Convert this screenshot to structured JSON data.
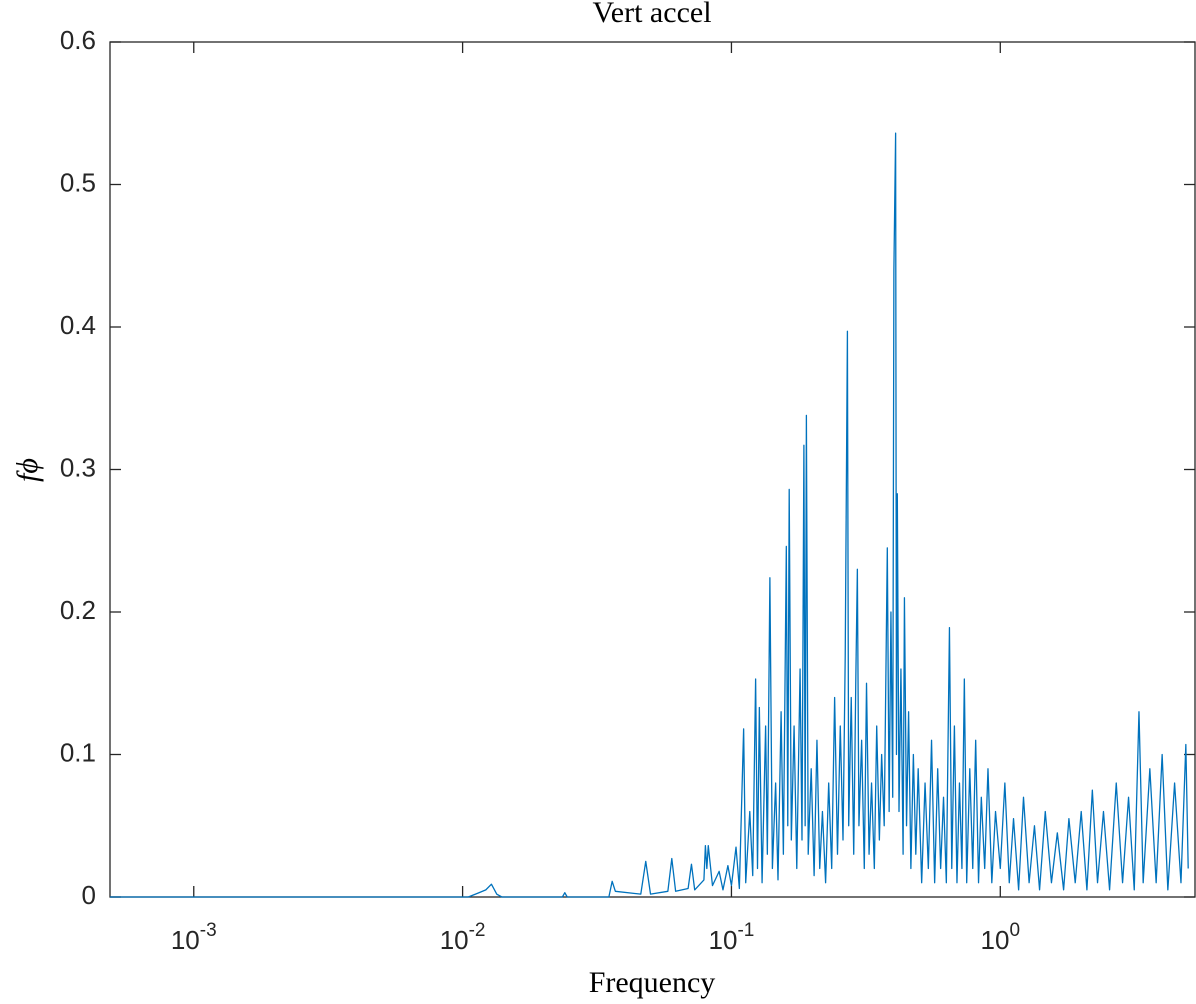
{
  "chart_data": {
    "type": "line",
    "title": "Vert accel",
    "xlabel": "Frequency",
    "ylabel": "fϕ",
    "log_x": true,
    "color": "#0072bd",
    "xlim": [
      0.000488,
      5.3
    ],
    "ylim": [
      0,
      0.6
    ],
    "xticks": [
      {
        "value": 0.001,
        "label": "10^-3"
      },
      {
        "value": 0.01,
        "label": "10^-2"
      },
      {
        "value": 0.1,
        "label": "10^-1"
      },
      {
        "value": 1,
        "label": "10^0"
      }
    ],
    "yticks": [
      0,
      0.1,
      0.2,
      0.3,
      0.4,
      0.5,
      0.6
    ],
    "x": [
      0.000488,
      0.005,
      0.0105,
      0.0115,
      0.0122,
      0.0128,
      0.0134,
      0.014,
      0.0235,
      0.024,
      0.0245,
      0.035,
      0.036,
      0.037,
      0.046,
      0.048,
      0.05,
      0.058,
      0.06,
      0.062,
      0.069,
      0.071,
      0.073,
      0.079,
      0.08,
      0.081,
      0.082,
      0.085,
      0.09,
      0.093,
      0.097,
      0.1,
      0.104,
      0.107,
      0.111,
      0.113,
      0.117,
      0.12,
      0.123,
      0.125,
      0.127,
      0.13,
      0.134,
      0.136,
      0.139,
      0.142,
      0.146,
      0.149,
      0.153,
      0.156,
      0.16,
      0.162,
      0.164,
      0.167,
      0.171,
      0.175,
      0.18,
      0.183,
      0.186,
      0.188,
      0.19,
      0.193,
      0.198,
      0.203,
      0.208,
      0.213,
      0.218,
      0.224,
      0.23,
      0.236,
      0.242,
      0.248,
      0.254,
      0.26,
      0.265,
      0.27,
      0.273,
      0.279,
      0.285,
      0.29,
      0.294,
      0.298,
      0.305,
      0.312,
      0.318,
      0.325,
      0.332,
      0.34,
      0.347,
      0.355,
      0.362,
      0.37,
      0.38,
      0.386,
      0.392,
      0.398,
      0.402,
      0.408,
      0.411,
      0.414,
      0.42,
      0.427,
      0.435,
      0.44,
      0.448,
      0.456,
      0.465,
      0.475,
      0.485,
      0.495,
      0.51,
      0.525,
      0.54,
      0.555,
      0.57,
      0.585,
      0.6,
      0.615,
      0.63,
      0.647,
      0.66,
      0.675,
      0.69,
      0.705,
      0.72,
      0.735,
      0.75,
      0.77,
      0.79,
      0.81,
      0.83,
      0.85,
      0.875,
      0.9,
      0.93,
      0.96,
      1,
      1.04,
      1.08,
      1.12,
      1.17,
      1.22,
      1.28,
      1.34,
      1.4,
      1.47,
      1.55,
      1.63,
      1.72,
      1.8,
      1.9,
      2,
      2.1,
      2.2,
      2.3,
      2.42,
      2.55,
      2.7,
      2.85,
      3,
      3.15,
      3.28,
      3.4,
      3.6,
      3.8,
      4,
      4.2,
      4.45,
      4.7,
      4.9,
      5
    ],
    "values": [
      0,
      0,
      0,
      0.003,
      0.005,
      0.009,
      0.002,
      0,
      0,
      0.003,
      0,
      0,
      0.011,
      0.004,
      0.002,
      0.025,
      0.002,
      0.004,
      0.027,
      0.004,
      0.006,
      0.023,
      0.005,
      0.012,
      0.036,
      0.02,
      0.036,
      0.008,
      0.018,
      0.005,
      0.022,
      0.008,
      0.035,
      0.006,
      0.118,
      0.01,
      0.06,
      0.015,
      0.153,
      0.02,
      0.133,
      0.01,
      0.12,
      0.03,
      0.224,
      0.02,
      0.08,
      0.012,
      0.13,
      0.03,
      0.246,
      0.05,
      0.286,
      0.04,
      0.12,
      0.02,
      0.16,
      0.04,
      0.317,
      0.05,
      0.338,
      0.03,
      0.09,
      0.015,
      0.11,
      0.02,
      0.06,
      0.01,
      0.08,
      0.02,
      0.14,
      0.03,
      0.12,
      0.04,
      0.17,
      0.397,
      0.05,
      0.14,
      0.03,
      0.15,
      0.23,
      0.05,
      0.11,
      0.02,
      0.15,
      0.03,
      0.08,
      0.02,
      0.12,
      0.04,
      0.1,
      0.05,
      0.245,
      0.06,
      0.2,
      0.07,
      0.44,
      0.536,
      0.1,
      0.283,
      0.06,
      0.16,
      0.03,
      0.21,
      0.05,
      0.13,
      0.02,
      0.1,
      0.03,
      0.09,
      0.01,
      0.08,
      0.02,
      0.11,
      0.01,
      0.09,
      0.02,
      0.07,
      0.01,
      0.189,
      0.02,
      0.12,
      0.01,
      0.08,
      0.02,
      0.153,
      0.01,
      0.09,
      0.02,
      0.11,
      0.01,
      0.07,
      0.02,
      0.09,
      0.01,
      0.06,
      0.02,
      0.08,
      0.01,
      0.055,
      0.005,
      0.07,
      0.01,
      0.05,
      0.005,
      0.06,
      0.01,
      0.045,
      0.005,
      0.055,
      0.01,
      0.06,
      0.005,
      0.075,
      0.01,
      0.06,
      0.005,
      0.08,
      0.01,
      0.07,
      0.005,
      0.13,
      0.01,
      0.09,
      0.01,
      0.1,
      0.005,
      0.08,
      0.01,
      0.107,
      0.02
    ]
  }
}
